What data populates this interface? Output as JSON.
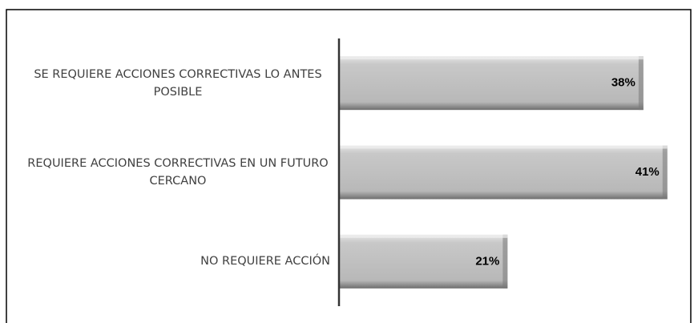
{
  "chart_data": {
    "type": "bar",
    "orientation": "horizontal",
    "categories": [
      "SE REQUIERE ACCIONES CORRECTIVAS LO ANTES POSIBLE",
      "REQUIERE ACCIONES CORRECTIVAS EN UN FUTURO CERCANO",
      "NO REQUIERE ACCIÓN"
    ],
    "values": [
      38,
      41,
      21
    ],
    "value_labels": [
      "38%",
      "41%",
      "21%"
    ],
    "color": "#bfbfbf"
  }
}
